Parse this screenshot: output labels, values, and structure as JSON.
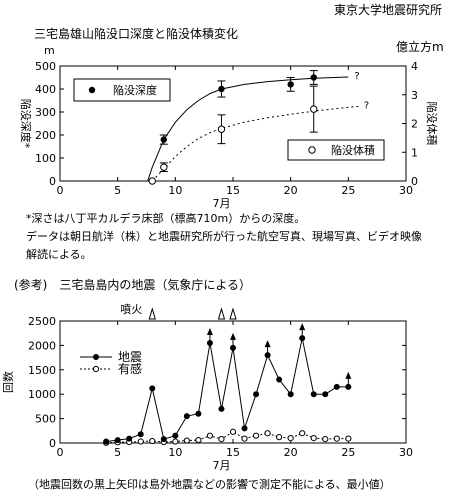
{
  "source": "東京大学地震研究所",
  "note_line1": "*深さは八丁平カルデラ床部（標高710m）からの深度。",
  "note_line2": "データは朝日航洋（株）と地震研究所が行った航空写真、現場写真、ビデオ映像",
  "note_line3": "解読による。",
  "section2_title": "(参考)　三宅島島内の地震（気象庁による）",
  "footer_note": "（地震回数の黒上矢印は島外地震などの影響で測定不能による、最小値）",
  "chart_data": [
    {
      "type": "scatter",
      "title": "三宅島雄山陥没口深度と陥没体積変化",
      "xlabel": "7月",
      "ylabel": "陥没深度*",
      "ylabel_unit": "m",
      "y2label": "陥没体積",
      "y2label_unit": "億立方m",
      "xlim": [
        0,
        30
      ],
      "ylim": [
        0,
        500
      ],
      "y2lim": [
        0,
        4
      ],
      "xticks": [
        0,
        5,
        10,
        15,
        20,
        25,
        30
      ],
      "yticks": [
        0,
        100,
        200,
        300,
        400,
        500
      ],
      "y2ticks": [
        0,
        1,
        2,
        3,
        4
      ],
      "grid": false,
      "series": [
        {
          "name": "陥没深度",
          "axis": "left",
          "marker": "filled-circle",
          "line": "solid",
          "x": [
            9,
            14,
            20,
            22
          ],
          "y": [
            180,
            400,
            420,
            450
          ],
          "err": [
            20,
            35,
            30,
            30
          ]
        },
        {
          "name": "陥没体積",
          "axis": "right",
          "marker": "open-circle",
          "line": "dotted",
          "x": [
            8,
            9,
            14,
            22
          ],
          "y": [
            0,
            0.48,
            1.8,
            2.5
          ],
          "err": [
            0,
            0.15,
            0.5,
            0.8
          ]
        }
      ],
      "fit_depth": [
        [
          7.6,
          0
        ],
        [
          8,
          60
        ],
        [
          9,
          180
        ],
        [
          10,
          255
        ],
        [
          11,
          310
        ],
        [
          12,
          350
        ],
        [
          13,
          380
        ],
        [
          14,
          400
        ],
        [
          16,
          420
        ],
        [
          18,
          432
        ],
        [
          20,
          440
        ],
        [
          22,
          447
        ],
        [
          25,
          452
        ]
      ],
      "fit_volume": [
        [
          8,
          0
        ],
        [
          9,
          0.42
        ],
        [
          10,
          0.85
        ],
        [
          11,
          1.2
        ],
        [
          12,
          1.48
        ],
        [
          13,
          1.68
        ],
        [
          14,
          1.83
        ],
        [
          16,
          2.05
        ],
        [
          18,
          2.2
        ],
        [
          20,
          2.32
        ],
        [
          22,
          2.43
        ],
        [
          24,
          2.52
        ],
        [
          26,
          2.6
        ]
      ],
      "question_mark": "?",
      "legend_depth": "陥没深度",
      "legend_volume": "陥没体積"
    },
    {
      "type": "line",
      "xlabel": "7月",
      "ylabel": "回数",
      "xlim": [
        0,
        30
      ],
      "ylim": [
        0,
        2500
      ],
      "xticks": [
        0,
        5,
        10,
        15,
        20,
        25,
        30
      ],
      "yticks": [
        0,
        500,
        1000,
        1500,
        2000,
        2500
      ],
      "grid": false,
      "eruption_label": "噴火",
      "eruption_days": [
        8,
        14,
        15
      ],
      "series": [
        {
          "name": "地震",
          "marker": "filled-circle",
          "line": "solid",
          "x": [
            4,
            5,
            6,
            7,
            8,
            9,
            10,
            11,
            12,
            13,
            14,
            15,
            16,
            17,
            18,
            19,
            20,
            21,
            22,
            23,
            24,
            25
          ],
          "y": [
            30,
            60,
            90,
            180,
            1120,
            80,
            150,
            550,
            600,
            2050,
            700,
            1950,
            300,
            1000,
            1800,
            1300,
            1000,
            2150,
            1000,
            1000,
            1150,
            1150
          ],
          "arrow_days": [
            13,
            15,
            18,
            21,
            25
          ]
        },
        {
          "name": "有感",
          "marker": "open-circle",
          "line": "dotted",
          "x": [
            4,
            5,
            6,
            7,
            8,
            9,
            10,
            11,
            12,
            13,
            14,
            15,
            16,
            17,
            18,
            19,
            20,
            21,
            22,
            23,
            24,
            25
          ],
          "y": [
            5,
            15,
            20,
            30,
            40,
            20,
            30,
            50,
            60,
            150,
            80,
            230,
            90,
            150,
            200,
            120,
            100,
            200,
            100,
            80,
            90,
            90
          ]
        }
      ],
      "legend_quake": "地震",
      "legend_felt": "有感"
    }
  ]
}
